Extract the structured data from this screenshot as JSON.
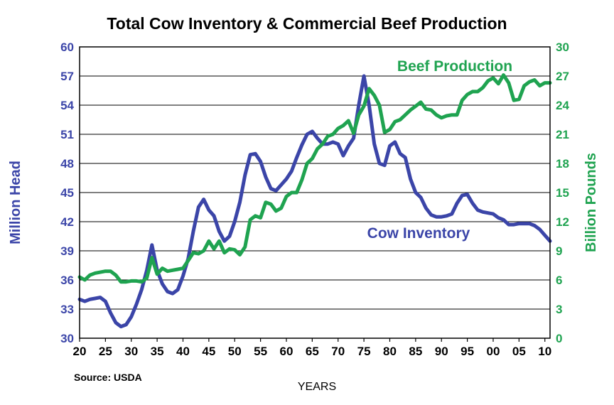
{
  "chart_data": {
    "type": "line",
    "title": "Total Cow Inventory & Commercial Beef Production",
    "xlabel": "YEARS",
    "ylabel_left": "Million Head",
    "ylabel_right": "Billion Pounds",
    "source": "Source: USDA",
    "xlim": [
      1920,
      2011
    ],
    "ylim_left": [
      30,
      60
    ],
    "ylim_right": [
      0,
      30
    ],
    "yticks_left": [
      30,
      33,
      36,
      39,
      42,
      45,
      48,
      51,
      54,
      57,
      60
    ],
    "yticks_right": [
      0,
      3,
      6,
      9,
      12,
      15,
      18,
      21,
      24,
      27,
      30
    ],
    "xtick_values": [
      1920,
      1925,
      1930,
      1935,
      1940,
      1945,
      1950,
      1955,
      1960,
      1965,
      1970,
      1975,
      1980,
      1985,
      1990,
      1995,
      2000,
      2005,
      2010
    ],
    "xtick_labels": [
      "20",
      "25",
      "30",
      "35",
      "40",
      "45",
      "50",
      "55",
      "60",
      "65",
      "70",
      "75",
      "80",
      "85",
      "90",
      "95",
      "00",
      "05",
      "10"
    ],
    "grid": true,
    "left_axis_color": "#3b45a8",
    "right_axis_color": "#1fa350",
    "series": [
      {
        "name": "Cow Inventory",
        "axis": "left",
        "color": "#3b45a8",
        "x": [
          1920,
          1921,
          1922,
          1923,
          1924,
          1925,
          1926,
          1927,
          1928,
          1929,
          1930,
          1931,
          1932,
          1933,
          1934,
          1935,
          1936,
          1937,
          1938,
          1939,
          1940,
          1941,
          1942,
          1943,
          1944,
          1945,
          1946,
          1947,
          1948,
          1949,
          1950,
          1951,
          1952,
          1953,
          1954,
          1955,
          1956,
          1957,
          1958,
          1959,
          1960,
          1961,
          1962,
          1963,
          1964,
          1965,
          1966,
          1967,
          1968,
          1969,
          1970,
          1971,
          1972,
          1973,
          1974,
          1975,
          1976,
          1977,
          1978,
          1979,
          1980,
          1981,
          1982,
          1983,
          1984,
          1985,
          1986,
          1987,
          1988,
          1989,
          1990,
          1991,
          1992,
          1993,
          1994,
          1995,
          1996,
          1997,
          1998,
          1999,
          2000,
          2001,
          2002,
          2003,
          2004,
          2005,
          2006,
          2007,
          2008,
          2009,
          2010,
          2011
        ],
        "values": [
          34.0,
          33.8,
          34.0,
          34.1,
          34.2,
          33.8,
          32.6,
          31.6,
          31.2,
          31.4,
          32.2,
          33.5,
          35.0,
          37.0,
          39.6,
          37.0,
          35.6,
          34.8,
          34.6,
          35.0,
          36.4,
          38.2,
          41.0,
          43.5,
          44.3,
          43.2,
          42.6,
          41.0,
          40.0,
          40.5,
          42.0,
          44.0,
          46.8,
          48.9,
          49.0,
          48.2,
          46.6,
          45.4,
          45.2,
          45.8,
          46.4,
          47.2,
          48.6,
          49.9,
          51.0,
          51.3,
          50.6,
          50.0,
          50.0,
          50.2,
          50.0,
          48.8,
          49.8,
          50.6,
          54.0,
          57.0,
          54.0,
          50.0,
          48.0,
          47.8,
          49.8,
          50.2,
          49.0,
          48.6,
          46.4,
          45.0,
          44.5,
          43.4,
          42.7,
          42.5,
          42.5,
          42.6,
          42.8,
          43.9,
          44.7,
          44.8,
          43.9,
          43.2,
          43.0,
          42.9,
          42.8,
          42.4,
          42.2,
          41.7,
          41.7,
          41.8,
          41.8,
          41.8,
          41.6,
          41.2,
          40.6,
          40.0
        ]
      },
      {
        "name": "Beef Production",
        "axis": "right",
        "color": "#1fa350",
        "x": [
          1920,
          1921,
          1922,
          1923,
          1924,
          1925,
          1926,
          1927,
          1928,
          1929,
          1930,
          1931,
          1932,
          1933,
          1934,
          1935,
          1936,
          1937,
          1938,
          1939,
          1940,
          1941,
          1942,
          1943,
          1944,
          1945,
          1946,
          1947,
          1948,
          1949,
          1950,
          1951,
          1952,
          1953,
          1954,
          1955,
          1956,
          1957,
          1958,
          1959,
          1960,
          1961,
          1962,
          1963,
          1964,
          1965,
          1966,
          1967,
          1968,
          1969,
          1970,
          1971,
          1972,
          1973,
          1974,
          1975,
          1976,
          1977,
          1978,
          1979,
          1980,
          1981,
          1982,
          1983,
          1984,
          1985,
          1986,
          1987,
          1988,
          1989,
          1990,
          1991,
          1992,
          1993,
          1994,
          1995,
          1996,
          1997,
          1998,
          1999,
          2000,
          2001,
          2002,
          2003,
          2004,
          2005,
          2006,
          2007,
          2008,
          2009,
          2010,
          2011
        ],
        "values": [
          6.3,
          6.0,
          6.5,
          6.7,
          6.8,
          6.9,
          6.9,
          6.5,
          5.8,
          5.8,
          5.9,
          5.9,
          5.8,
          6.2,
          8.3,
          6.6,
          7.2,
          6.9,
          7.0,
          7.1,
          7.2,
          8.0,
          8.8,
          8.7,
          9.0,
          10.0,
          9.2,
          10.0,
          8.8,
          9.2,
          9.1,
          8.6,
          9.4,
          12.2,
          12.6,
          12.4,
          14.0,
          13.8,
          13.1,
          13.4,
          14.6,
          15.0,
          15.0,
          16.3,
          18.0,
          18.5,
          19.5,
          20.0,
          20.8,
          21.0,
          21.6,
          21.9,
          22.4,
          21.1,
          23.0,
          23.9,
          25.7,
          25.0,
          24.0,
          21.2,
          21.5,
          22.3,
          22.5,
          23.0,
          23.5,
          23.9,
          24.3,
          23.6,
          23.5,
          23.0,
          22.7,
          22.9,
          23.0,
          23.0,
          24.5,
          25.1,
          25.4,
          25.4,
          25.8,
          26.5,
          26.8,
          26.2,
          27.1,
          26.3,
          24.5,
          24.6,
          26.0,
          26.4,
          26.6,
          26.0,
          26.3,
          26.3
        ]
      }
    ]
  }
}
